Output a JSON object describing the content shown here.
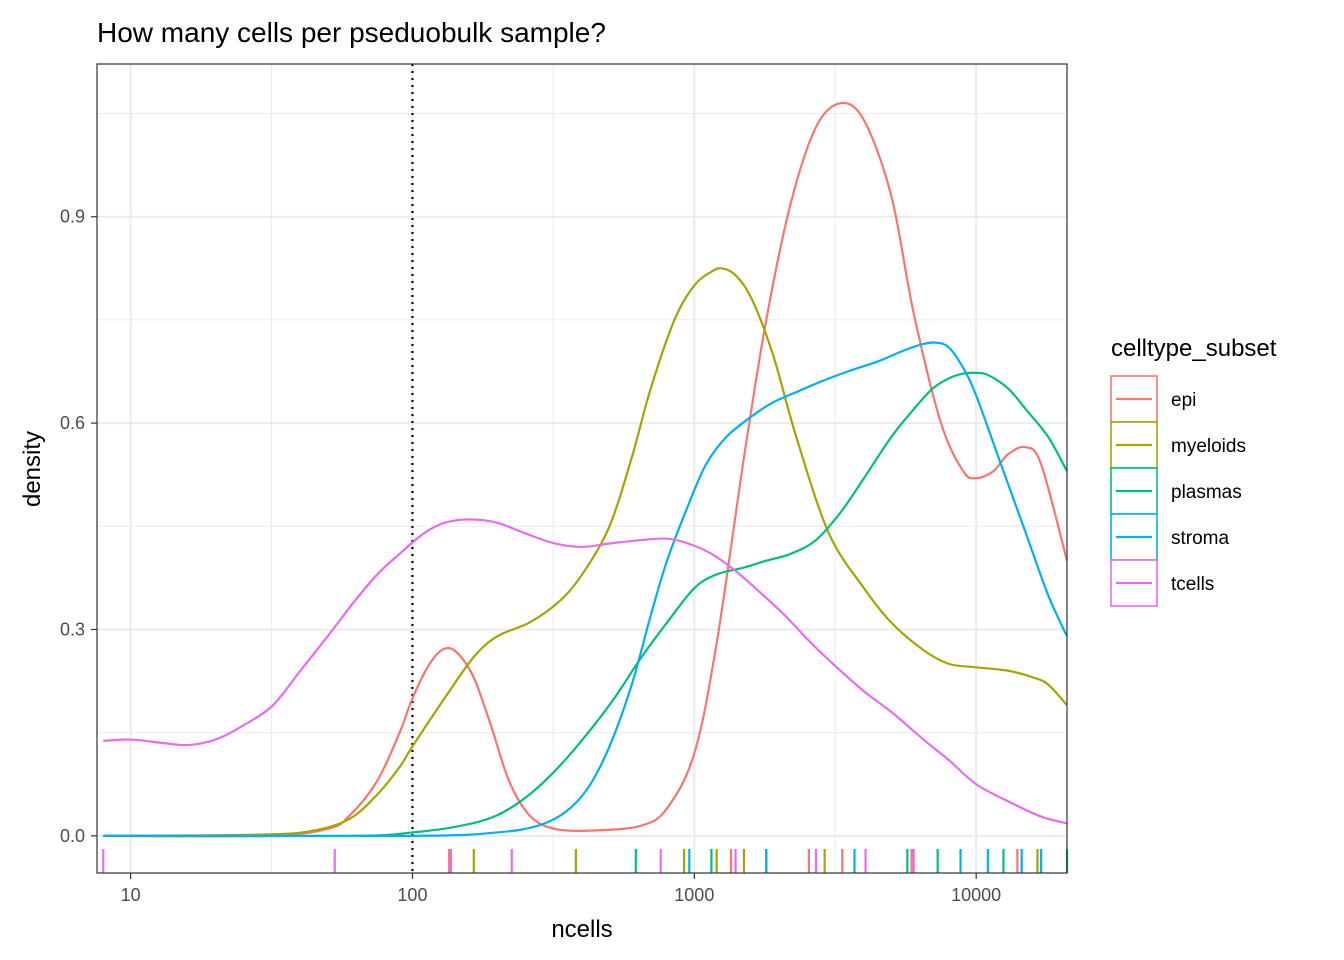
{
  "chart_data": {
    "type": "line",
    "title": "How many cells per pseduobulk sample?",
    "xlabel": "ncells",
    "ylabel": "density",
    "x_scale": "log10",
    "xlim": [
      7.6,
      21000
    ],
    "ylim": [
      -0.054,
      1.122
    ],
    "x_ticks": [
      10,
      100,
      1000,
      10000
    ],
    "x_tick_labels": [
      "10",
      "100",
      "1000",
      "10000"
    ],
    "y_ticks": [
      0.0,
      0.3,
      0.6,
      0.9
    ],
    "y_tick_labels": [
      "0.0",
      "0.3",
      "0.6",
      "0.9"
    ],
    "grid": true,
    "legend_title": "celltype_subset",
    "legend_position": "right",
    "reference_line": {
      "x": 100,
      "style": "dotted",
      "color": "#000000"
    },
    "series": [
      {
        "name": "epi",
        "color": "#F8766D",
        "points": [
          [
            8,
            0
          ],
          [
            30,
            0
          ],
          [
            50,
            0.01
          ],
          [
            60,
            0.03
          ],
          [
            75,
            0.08
          ],
          [
            90,
            0.15
          ],
          [
            100,
            0.2
          ],
          [
            115,
            0.25
          ],
          [
            130,
            0.272
          ],
          [
            145,
            0.265
          ],
          [
            165,
            0.23
          ],
          [
            190,
            0.16
          ],
          [
            220,
            0.08
          ],
          [
            260,
            0.03
          ],
          [
            320,
            0.01
          ],
          [
            450,
            0.008
          ],
          [
            650,
            0.015
          ],
          [
            800,
            0.04
          ],
          [
            1000,
            0.12
          ],
          [
            1200,
            0.28
          ],
          [
            1500,
            0.55
          ],
          [
            1800,
            0.75
          ],
          [
            2200,
            0.92
          ],
          [
            2700,
            1.03
          ],
          [
            3300,
            1.065
          ],
          [
            4000,
            1.04
          ],
          [
            5000,
            0.93
          ],
          [
            6000,
            0.76
          ],
          [
            7500,
            0.6
          ],
          [
            9000,
            0.53
          ],
          [
            10000,
            0.52
          ],
          [
            11500,
            0.53
          ],
          [
            13000,
            0.555
          ],
          [
            15000,
            0.565
          ],
          [
            17000,
            0.54
          ],
          [
            21000,
            0.4
          ]
        ]
      },
      {
        "name": "myeloids",
        "color": "#A3A500",
        "points": [
          [
            8,
            0
          ],
          [
            30,
            0.002
          ],
          [
            45,
            0.008
          ],
          [
            60,
            0.025
          ],
          [
            75,
            0.06
          ],
          [
            90,
            0.1
          ],
          [
            100,
            0.13
          ],
          [
            130,
            0.2
          ],
          [
            165,
            0.26
          ],
          [
            200,
            0.29
          ],
          [
            260,
            0.31
          ],
          [
            330,
            0.34
          ],
          [
            400,
            0.38
          ],
          [
            500,
            0.45
          ],
          [
            600,
            0.55
          ],
          [
            700,
            0.65
          ],
          [
            850,
            0.75
          ],
          [
            1000,
            0.8
          ],
          [
            1150,
            0.82
          ],
          [
            1250,
            0.825
          ],
          [
            1400,
            0.815
          ],
          [
            1600,
            0.78
          ],
          [
            1900,
            0.7
          ],
          [
            2300,
            0.58
          ],
          [
            3000,
            0.44
          ],
          [
            4000,
            0.36
          ],
          [
            5000,
            0.31
          ],
          [
            6500,
            0.27
          ],
          [
            8000,
            0.25
          ],
          [
            10000,
            0.245
          ],
          [
            13000,
            0.24
          ],
          [
            16000,
            0.23
          ],
          [
            18000,
            0.22
          ],
          [
            21000,
            0.19
          ]
        ]
      },
      {
        "name": "plasmas",
        "color": "#00BF7D",
        "points": [
          [
            8,
            0
          ],
          [
            60,
            0
          ],
          [
            100,
            0.005
          ],
          [
            150,
            0.015
          ],
          [
            200,
            0.03
          ],
          [
            260,
            0.06
          ],
          [
            330,
            0.1
          ],
          [
            420,
            0.15
          ],
          [
            520,
            0.2
          ],
          [
            650,
            0.26
          ],
          [
            800,
            0.31
          ],
          [
            1000,
            0.36
          ],
          [
            1200,
            0.38
          ],
          [
            1500,
            0.39
          ],
          [
            1800,
            0.4
          ],
          [
            2200,
            0.41
          ],
          [
            2700,
            0.43
          ],
          [
            3300,
            0.47
          ],
          [
            4000,
            0.52
          ],
          [
            5000,
            0.58
          ],
          [
            6000,
            0.62
          ],
          [
            7000,
            0.65
          ],
          [
            8000,
            0.665
          ],
          [
            9000,
            0.672
          ],
          [
            10000,
            0.673
          ],
          [
            11000,
            0.67
          ],
          [
            13000,
            0.65
          ],
          [
            15000,
            0.62
          ],
          [
            18000,
            0.58
          ],
          [
            21000,
            0.53
          ]
        ]
      },
      {
        "name": "stroma",
        "color": "#00B0F6",
        "points": [
          [
            8,
            0
          ],
          [
            100,
            0
          ],
          [
            200,
            0.005
          ],
          [
            280,
            0.015
          ],
          [
            350,
            0.035
          ],
          [
            420,
            0.07
          ],
          [
            500,
            0.13
          ],
          [
            600,
            0.22
          ],
          [
            700,
            0.32
          ],
          [
            800,
            0.4
          ],
          [
            950,
            0.48
          ],
          [
            1100,
            0.54
          ],
          [
            1300,
            0.58
          ],
          [
            1600,
            0.61
          ],
          [
            1900,
            0.63
          ],
          [
            2300,
            0.645
          ],
          [
            2800,
            0.66
          ],
          [
            3500,
            0.675
          ],
          [
            4500,
            0.69
          ],
          [
            5500,
            0.705
          ],
          [
            6500,
            0.715
          ],
          [
            7200,
            0.717
          ],
          [
            8000,
            0.71
          ],
          [
            9000,
            0.68
          ],
          [
            10000,
            0.64
          ],
          [
            12000,
            0.55
          ],
          [
            15000,
            0.44
          ],
          [
            18000,
            0.35
          ],
          [
            21000,
            0.29
          ]
        ]
      },
      {
        "name": "tcells",
        "color": "#E76BF3",
        "points": [
          [
            8,
            0.138
          ],
          [
            10,
            0.14
          ],
          [
            13,
            0.135
          ],
          [
            16,
            0.132
          ],
          [
            20,
            0.14
          ],
          [
            25,
            0.16
          ],
          [
            32,
            0.19
          ],
          [
            40,
            0.24
          ],
          [
            50,
            0.29
          ],
          [
            62,
            0.34
          ],
          [
            75,
            0.38
          ],
          [
            90,
            0.41
          ],
          [
            110,
            0.44
          ],
          [
            130,
            0.455
          ],
          [
            160,
            0.46
          ],
          [
            200,
            0.455
          ],
          [
            250,
            0.44
          ],
          [
            320,
            0.425
          ],
          [
            400,
            0.42
          ],
          [
            500,
            0.425
          ],
          [
            650,
            0.43
          ],
          [
            800,
            0.432
          ],
          [
            950,
            0.425
          ],
          [
            1150,
            0.41
          ],
          [
            1400,
            0.385
          ],
          [
            1700,
            0.355
          ],
          [
            2100,
            0.32
          ],
          [
            2600,
            0.28
          ],
          [
            3200,
            0.245
          ],
          [
            4000,
            0.21
          ],
          [
            5000,
            0.18
          ],
          [
            6500,
            0.14
          ],
          [
            8000,
            0.11
          ],
          [
            10000,
            0.075
          ],
          [
            13000,
            0.05
          ],
          [
            17000,
            0.028
          ],
          [
            21000,
            0.018
          ]
        ]
      }
    ],
    "rug": [
      {
        "series": "epi",
        "x": [
          135,
          1350,
          2550,
          3350,
          5900,
          14000
        ]
      },
      {
        "series": "myeloids",
        "x": [
          165,
          380,
          920,
          1200,
          1500,
          2900,
          16500
        ]
      },
      {
        "series": "plasmas",
        "x": [
          620,
          1150,
          1800,
          5700,
          7300,
          12500,
          21000
        ]
      },
      {
        "series": "stroma",
        "x": [
          960,
          1800,
          3700,
          8800,
          11000,
          14500,
          17000
        ]
      },
      {
        "series": "tcells",
        "x": [
          8,
          53,
          137,
          225,
          760,
          1400,
          2700,
          4050,
          6000
        ]
      }
    ]
  }
}
